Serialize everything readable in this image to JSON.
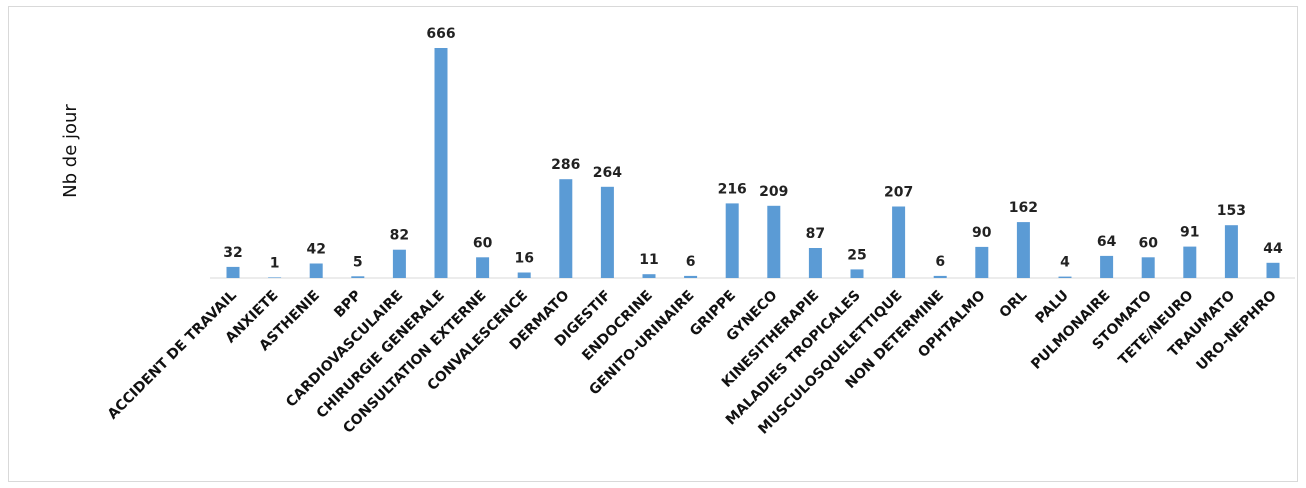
{
  "chart_data": {
    "type": "bar",
    "ylabel": "Nb de jour",
    "xlabel": "",
    "title": "",
    "ylim": [
      0,
      700
    ],
    "grid": false,
    "legend": "none",
    "bar_color": "#5b9bd5",
    "categories": [
      "ACCIDENT DE TRAVAIL",
      "ANXIETE",
      "ASTHENIE",
      "BPP",
      "CARDIOVASCULAIRE",
      "CHIRURGIE GENERALE",
      "CONSULTATION EXTERNE",
      "CONVALESCENCE",
      "DERMATO",
      "DIGESTIF",
      "ENDOCRINE",
      "GENITO-URINAIRE",
      "GRIPPE",
      "GYNECO",
      "KINESITHERAPIE",
      "MALADIES TROPICALES",
      "MUSCULOSQUELETTIQUE",
      "NON DETERMINE",
      "OPHTALMO",
      "ORL",
      "PALU",
      "PULMONAIRE",
      "STOMATO",
      "TETE/NEURO",
      "TRAUMATO",
      "URO-NEPHRO"
    ],
    "values": [
      32,
      1,
      42,
      5,
      82,
      666,
      60,
      16,
      286,
      264,
      11,
      6,
      216,
      209,
      87,
      25,
      207,
      6,
      90,
      162,
      4,
      64,
      60,
      91,
      153,
      44
    ]
  }
}
